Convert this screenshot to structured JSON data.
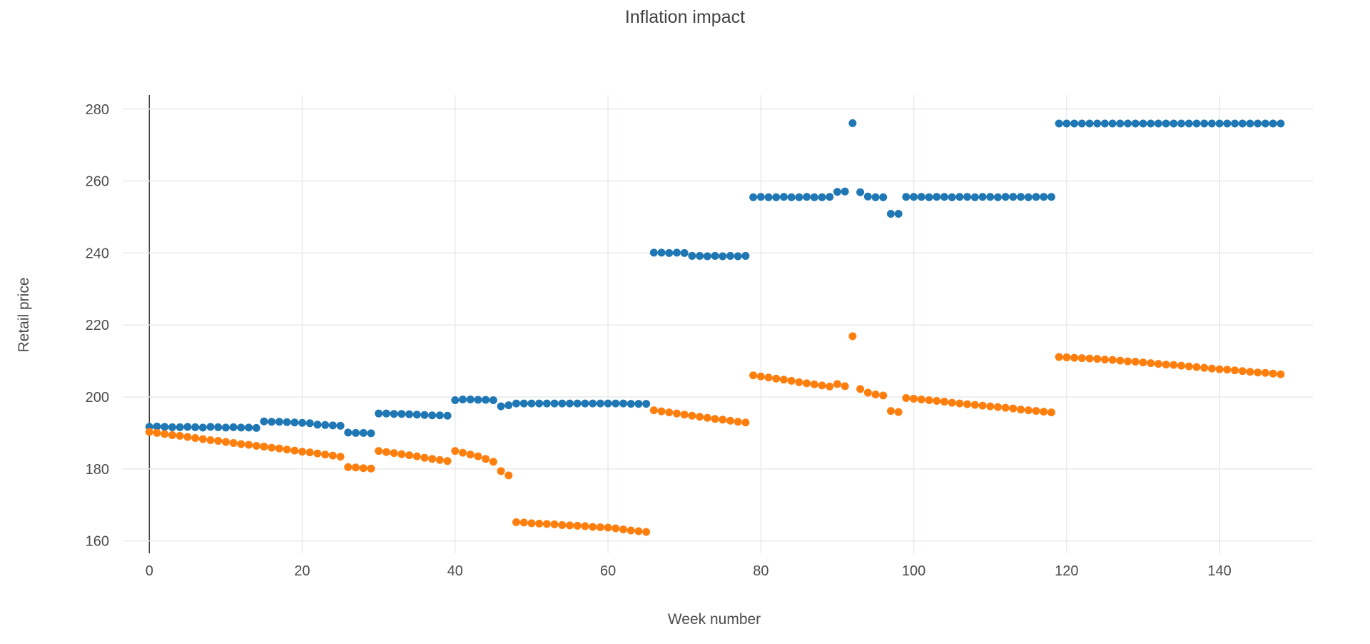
{
  "title": "Inflation impact",
  "colors": {
    "series_blue": "#1f77b4",
    "series_orange": "#ff7f0e",
    "gridline": "#e9eaec",
    "zeroline": "#404040",
    "label_text": "#4c4c4c",
    "background": "#ffffff"
  },
  "chart_data": {
    "type": "scatter",
    "title": "Inflation impact",
    "xlabel": "Week number",
    "ylabel": "Retail price",
    "xlim": [
      -3.5,
      152.3
    ],
    "ylim": [
      157.5,
      284.5
    ],
    "grid": true,
    "legend": false,
    "x_ticks": [
      0,
      20,
      40,
      60,
      80,
      100,
      120,
      140
    ],
    "y_ticks": [
      160,
      180,
      200,
      220,
      240,
      260,
      280
    ],
    "x_weeks": {
      "start": 0,
      "end": 148,
      "step": 1
    },
    "series": [
      {
        "name": "retail-price-series-blue",
        "color": "#1f77b4",
        "y": [
          191.7,
          191.8,
          191.7,
          191.6,
          191.6,
          191.7,
          191.6,
          191.5,
          191.7,
          191.6,
          191.5,
          191.6,
          191.5,
          191.5,
          191.4,
          193.2,
          193.1,
          193.1,
          193.0,
          192.9,
          192.8,
          192.7,
          192.3,
          192.2,
          192.1,
          192.0,
          190.1,
          190.0,
          190.0,
          189.9,
          195.4,
          195.4,
          195.3,
          195.3,
          195.2,
          195.1,
          195.0,
          194.9,
          194.9,
          194.8,
          199.1,
          199.3,
          199.3,
          199.2,
          199.2,
          199.1,
          197.4,
          197.7,
          198.2,
          198.2,
          198.2,
          198.2,
          198.2,
          198.2,
          198.2,
          198.2,
          198.2,
          198.2,
          198.2,
          198.2,
          198.2,
          198.2,
          198.2,
          198.1,
          198.1,
          198.1,
          240.1,
          240.1,
          240.0,
          240.1,
          240.0,
          239.2,
          239.2,
          239.1,
          239.2,
          239.1,
          239.2,
          239.1,
          239.2,
          255.5,
          255.6,
          255.5,
          255.5,
          255.6,
          255.5,
          255.5,
          255.6,
          255.5,
          255.5,
          255.6,
          257.0,
          257.1,
          276.1,
          256.9,
          255.7,
          255.5,
          255.5,
          250.9,
          250.9,
          255.6,
          255.6,
          255.6,
          255.5,
          255.6,
          255.6,
          255.5,
          255.6,
          255.6,
          255.5,
          255.6,
          255.6,
          255.5,
          255.6,
          255.6,
          255.6,
          255.5,
          255.6,
          255.6,
          255.6,
          276.0,
          276.0,
          276.0,
          276.0,
          276.0,
          276.0,
          276.0,
          276.0,
          276.0,
          276.0,
          276.0,
          276.0,
          276.0,
          276.0,
          276.0,
          276.0,
          276.0,
          276.0,
          276.0,
          276.0,
          276.0,
          276.0,
          276.0,
          276.0,
          276.0,
          276.0,
          276.0,
          276.0,
          276.0,
          276.0
        ]
      },
      {
        "name": "retail-price-series-orange",
        "color": "#ff7f0e",
        "y": [
          190.3,
          190.0,
          189.7,
          189.4,
          189.2,
          188.9,
          188.6,
          188.3,
          188.0,
          187.8,
          187.5,
          187.2,
          186.9,
          186.7,
          186.4,
          186.2,
          185.9,
          185.7,
          185.4,
          185.1,
          184.8,
          184.6,
          184.3,
          184.0,
          183.7,
          183.4,
          180.5,
          180.4,
          180.2,
          180.1,
          185.0,
          184.7,
          184.4,
          184.1,
          183.8,
          183.5,
          183.1,
          182.8,
          182.5,
          182.2,
          185.0,
          184.5,
          184.0,
          183.5,
          182.8,
          182.0,
          179.4,
          178.2,
          165.2,
          165.1,
          164.9,
          164.8,
          164.7,
          164.6,
          164.4,
          164.3,
          164.2,
          164.1,
          163.9,
          163.8,
          163.7,
          163.5,
          163.2,
          162.9,
          162.7,
          162.5,
          196.3,
          196.0,
          195.7,
          195.4,
          195.1,
          194.8,
          194.5,
          194.2,
          193.9,
          193.7,
          193.4,
          193.1,
          192.9,
          206.0,
          205.7,
          205.4,
          205.1,
          204.8,
          204.5,
          204.1,
          203.8,
          203.5,
          203.2,
          202.9,
          203.6,
          203.0,
          216.9,
          202.2,
          201.2,
          200.7,
          200.4,
          196.1,
          195.8,
          199.7,
          199.5,
          199.3,
          199.1,
          198.9,
          198.7,
          198.4,
          198.2,
          198.0,
          197.8,
          197.6,
          197.4,
          197.2,
          197.0,
          196.8,
          196.5,
          196.3,
          196.1,
          195.9,
          195.7,
          211.1,
          211.0,
          210.9,
          210.8,
          210.7,
          210.6,
          210.4,
          210.3,
          210.1,
          209.9,
          209.8,
          209.6,
          209.4,
          209.2,
          209.0,
          208.9,
          208.7,
          208.5,
          208.3,
          208.1,
          207.9,
          207.7,
          207.6,
          207.4,
          207.2,
          207.0,
          206.8,
          206.7,
          206.5,
          206.3
        ]
      }
    ]
  }
}
